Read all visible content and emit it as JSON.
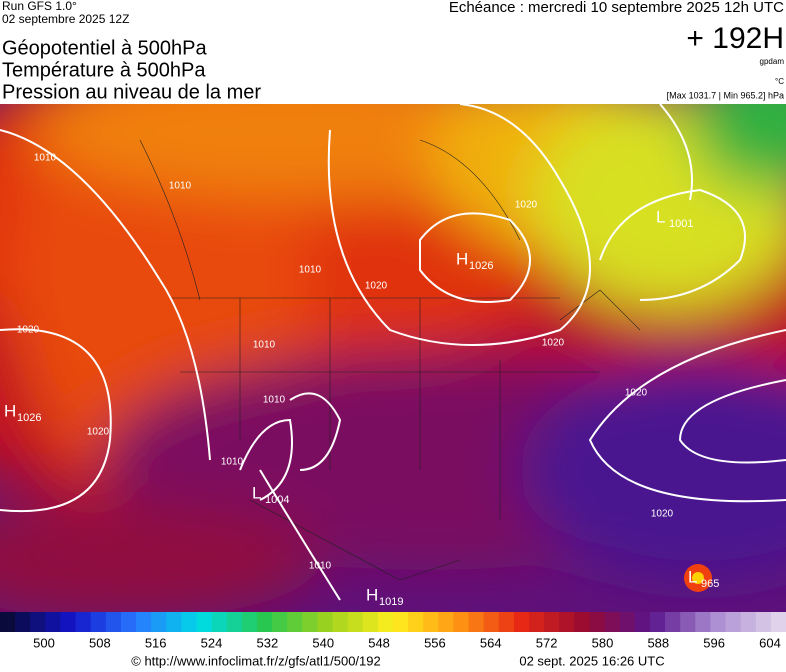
{
  "header": {
    "run": "Run GFS 1.0°",
    "run_date": "02 septembre 2025 12Z",
    "valid": "Echéance : mercredi 10 septembre 2025 12h UTC",
    "lead": "+ 192H",
    "titles": [
      "Géopotentiel à 500hPa",
      "Température à 500hPa",
      "Pression au niveau de la mer"
    ],
    "units": [
      "gpdam",
      "°C"
    ],
    "extremes": "[Max 1031.7 | Min 965.2] hPa"
  },
  "map": {
    "centers": [
      {
        "letter": "H",
        "value": 1026
      },
      {
        "letter": "H",
        "value": 1026
      },
      {
        "letter": "L",
        "value": 1001
      },
      {
        "letter": "L",
        "value": 1004
      },
      {
        "letter": "H",
        "value": 1019
      },
      {
        "letter": "L",
        "value": 965
      }
    ],
    "isobar_labels": [
      1010,
      1010,
      1020,
      1020,
      1010,
      1020,
      1010,
      1010,
      1020,
      1020,
      1020,
      1020,
      1010,
      1010
    ]
  },
  "colorbar": {
    "ticks": [
      500,
      508,
      516,
      524,
      532,
      540,
      548,
      556,
      564,
      572,
      580,
      588,
      596,
      604
    ]
  },
  "footer": {
    "source": "© http://www.infoclimat.fr/z/gfs/atl1/500/192",
    "generated": "02 sept. 2025 16:26 UTC"
  }
}
